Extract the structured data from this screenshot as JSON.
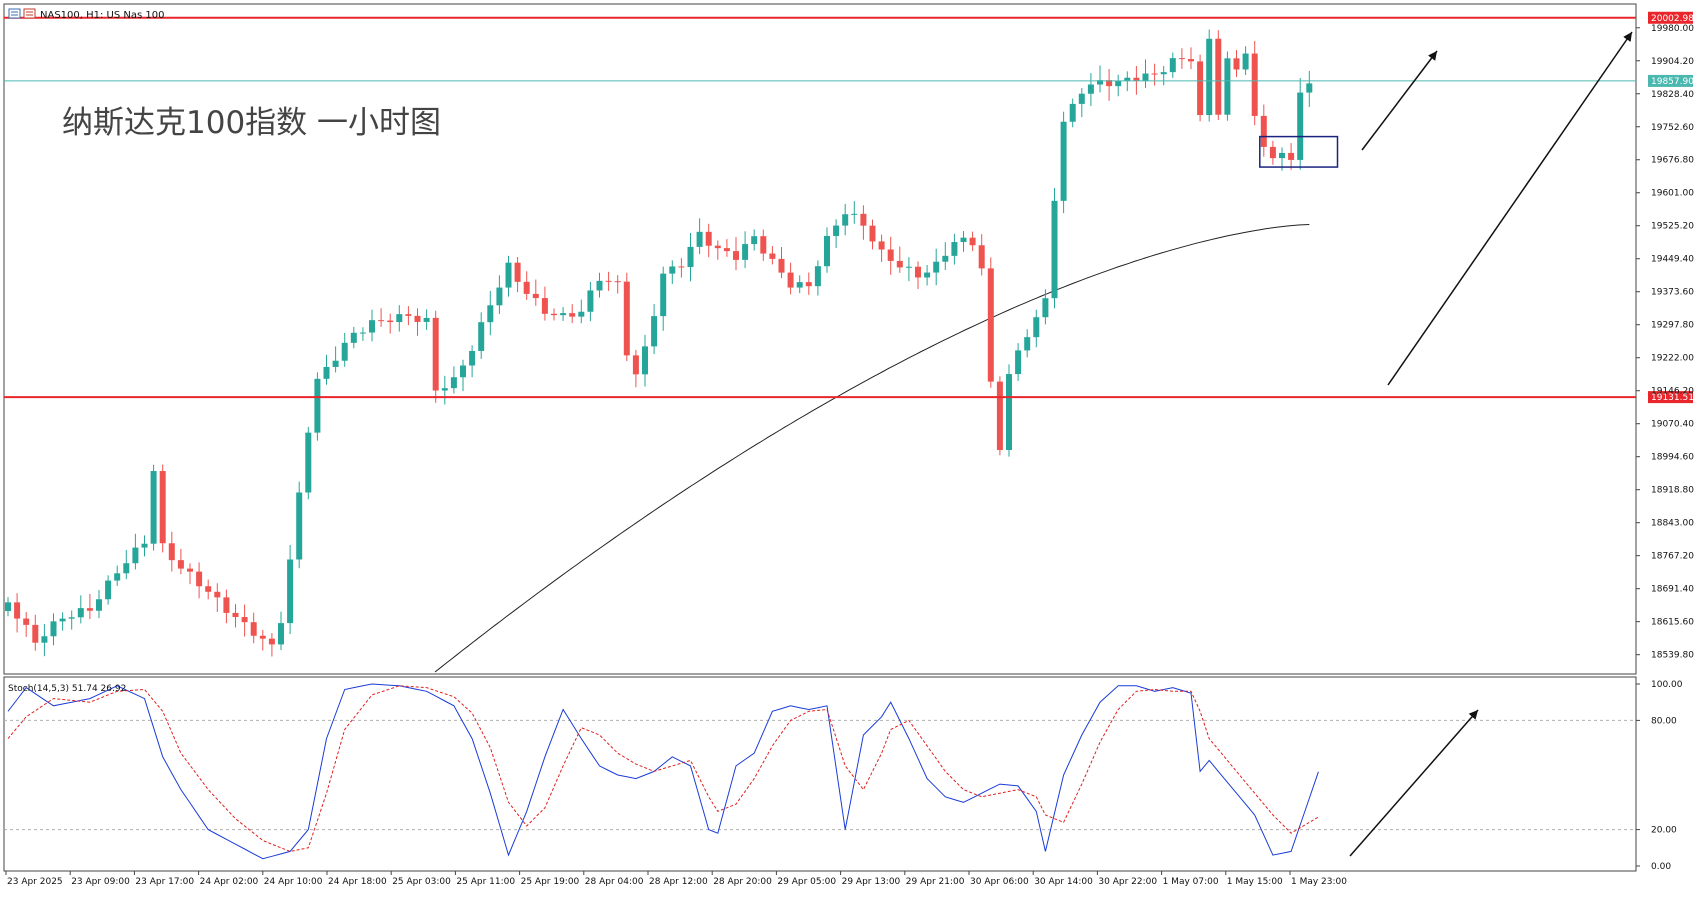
{
  "header": {
    "symbol_label": "NAS100, H1:  US Nas 100",
    "overlay_title": "纳斯达克100指数 一小时图"
  },
  "colors": {
    "bull": "#26a69a",
    "bear": "#ef5350",
    "resistance": "#e8262b",
    "current_price": "#4bb8b0",
    "ma": "#222222",
    "stoch_main": "#1a3cd8",
    "stoch_signal": "#e02020",
    "box": "#1a237e",
    "arrow": "#111111"
  },
  "chart_data": [
    {
      "type": "candlestick",
      "title": "",
      "y_ticks": [
        "19980.00",
        "19904.20",
        "19828.40",
        "19752.60",
        "19676.80",
        "19601.00",
        "19525.20",
        "19449.40",
        "19373.60",
        "19297.80",
        "19222.00",
        "19146.20",
        "19070.40",
        "18994.60",
        "18918.80",
        "18843.00",
        "18767.20",
        "18691.40",
        "18615.60",
        "18539.80"
      ],
      "ylim": [
        18500,
        20030
      ],
      "x_labels": [
        "23 Apr 2025",
        "23 Apr 09:00",
        "23 Apr 17:00",
        "24 Apr 02:00",
        "24 Apr 10:00",
        "24 Apr 18:00",
        "25 Apr 03:00",
        "25 Apr 11:00",
        "25 Apr 19:00",
        "28 Apr 04:00",
        "28 Apr 12:00",
        "28 Apr 20:00",
        "29 Apr 05:00",
        "29 Apr 13:00",
        "29 Apr 21:00",
        "30 Apr 06:00",
        "30 Apr 14:00",
        "30 Apr 22:00",
        "1 May 07:00",
        "1 May 15:00",
        "1 May 23:00"
      ],
      "close_anchors": [
        [
          0,
          18660
        ],
        [
          3,
          18560
        ],
        [
          6,
          18620
        ],
        [
          9,
          18650
        ],
        [
          12,
          18740
        ],
        [
          15,
          18800
        ],
        [
          16,
          18960
        ],
        [
          17,
          18780
        ],
        [
          19,
          18730
        ],
        [
          21,
          18700
        ],
        [
          24,
          18650
        ],
        [
          27,
          18600
        ],
        [
          29,
          18560
        ],
        [
          30,
          18620
        ],
        [
          31,
          18750
        ],
        [
          32,
          18900
        ],
        [
          33,
          19050
        ],
        [
          34,
          19160
        ],
        [
          36,
          19220
        ],
        [
          38,
          19280
        ],
        [
          40,
          19310
        ],
        [
          42,
          19320
        ],
        [
          44,
          19320
        ],
        [
          46,
          19300
        ],
        [
          47,
          19140
        ],
        [
          48,
          19150
        ],
        [
          49,
          19160
        ],
        [
          51,
          19240
        ],
        [
          53,
          19350
        ],
        [
          55,
          19440
        ],
        [
          57,
          19380
        ],
        [
          59,
          19330
        ],
        [
          61,
          19310
        ],
        [
          63,
          19320
        ],
        [
          65,
          19400
        ],
        [
          67,
          19390
        ],
        [
          68,
          19240
        ],
        [
          69,
          19190
        ],
        [
          70,
          19250
        ],
        [
          72,
          19420
        ],
        [
          74,
          19440
        ],
        [
          76,
          19500
        ],
        [
          78,
          19460
        ],
        [
          80,
          19450
        ],
        [
          82,
          19500
        ],
        [
          84,
          19450
        ],
        [
          86,
          19400
        ],
        [
          88,
          19390
        ],
        [
          90,
          19490
        ],
        [
          92,
          19550
        ],
        [
          94,
          19520
        ],
        [
          96,
          19460
        ],
        [
          98,
          19440
        ],
        [
          100,
          19420
        ],
        [
          102,
          19440
        ],
        [
          104,
          19490
        ],
        [
          106,
          19480
        ],
        [
          107,
          19420
        ],
        [
          108,
          19150
        ],
        [
          109,
          19010
        ],
        [
          110,
          19180
        ],
        [
          112,
          19280
        ],
        [
          114,
          19360
        ],
        [
          115,
          19600
        ],
        [
          116,
          19770
        ],
        [
          118,
          19840
        ],
        [
          120,
          19850
        ],
        [
          122,
          19845
        ],
        [
          124,
          19860
        ],
        [
          126,
          19870
        ],
        [
          128,
          19910
        ],
        [
          130,
          19920
        ],
        [
          131,
          19780
        ],
        [
          132,
          19960
        ],
        [
          133,
          19790
        ],
        [
          134,
          19900
        ],
        [
          135,
          19880
        ],
        [
          136,
          19920
        ],
        [
          137,
          19760
        ],
        [
          138,
          19700
        ],
        [
          139,
          19680
        ],
        [
          141,
          19680
        ],
        [
          142,
          19840
        ],
        [
          143,
          19850
        ]
      ],
      "horizontal_levels": [
        {
          "label": "20002.98",
          "value": 20002.98
        },
        {
          "label": "19131.51",
          "value": 19131.51
        }
      ],
      "current_price": {
        "label": "19857.90",
        "value": 19857.9
      },
      "moving_average": {
        "period": 200,
        "start_value": 18500,
        "end_value": 19528
      },
      "box": {
        "from_index": 138,
        "to_index": 145,
        "low": 19660,
        "high": 19730
      }
    },
    {
      "type": "line",
      "title": "",
      "label": "Stoch(14,5,3) 51.74 26.92",
      "y_ticks": [
        "100.00",
        "80.00",
        "20.00",
        "0.00"
      ],
      "ylim": [
        0,
        100
      ],
      "levels": [
        80,
        20
      ],
      "series": [
        {
          "name": "",
          "role": "main",
          "anchors": [
            [
              0,
              85
            ],
            [
              2,
              98
            ],
            [
              5,
              88
            ],
            [
              9,
              92
            ],
            [
              12,
              99
            ],
            [
              15,
              92
            ],
            [
              17,
              60
            ],
            [
              19,
              42
            ],
            [
              22,
              20
            ],
            [
              25,
              12
            ],
            [
              28,
              4
            ],
            [
              31,
              8
            ],
            [
              33,
              20
            ],
            [
              35,
              70
            ],
            [
              37,
              97
            ],
            [
              40,
              100
            ],
            [
              43,
              99
            ],
            [
              46,
              96
            ],
            [
              49,
              88
            ],
            [
              51,
              70
            ],
            [
              53,
              40
            ],
            [
              55,
              6
            ],
            [
              57,
              30
            ],
            [
              59,
              60
            ],
            [
              61,
              86
            ],
            [
              63,
              70
            ],
            [
              65,
              55
            ],
            [
              67,
              50
            ],
            [
              69,
              48
            ],
            [
              71,
              52
            ],
            [
              73,
              60
            ],
            [
              75,
              55
            ],
            [
              77,
              20
            ],
            [
              78,
              18
            ],
            [
              80,
              55
            ],
            [
              82,
              62
            ],
            [
              84,
              85
            ],
            [
              86,
              88
            ],
            [
              88,
              86
            ],
            [
              90,
              88
            ],
            [
              92,
              20
            ],
            [
              94,
              72
            ],
            [
              96,
              82
            ],
            [
              97,
              90
            ],
            [
              99,
              70
            ],
            [
              101,
              48
            ],
            [
              103,
              38
            ],
            [
              105,
              35
            ],
            [
              107,
              40
            ],
            [
              109,
              45
            ],
            [
              111,
              44
            ],
            [
              113,
              30
            ],
            [
              114,
              8
            ],
            [
              116,
              50
            ],
            [
              118,
              72
            ],
            [
              120,
              90
            ],
            [
              122,
              99
            ],
            [
              124,
              99
            ],
            [
              126,
              96
            ],
            [
              128,
              98
            ],
            [
              130,
              95
            ],
            [
              131,
              52
            ],
            [
              132,
              58
            ],
            [
              134,
              46
            ],
            [
              135,
              40
            ],
            [
              137,
              28
            ],
            [
              139,
              6
            ],
            [
              141,
              8
            ],
            [
              144,
              51.74
            ]
          ]
        },
        {
          "name": "",
          "role": "signal",
          "anchors": [
            [
              0,
              70
            ],
            [
              2,
              82
            ],
            [
              5,
              92
            ],
            [
              9,
              90
            ],
            [
              12,
              96
            ],
            [
              15,
              97
            ],
            [
              17,
              85
            ],
            [
              19,
              62
            ],
            [
              22,
              42
            ],
            [
              25,
              26
            ],
            [
              28,
              14
            ],
            [
              31,
              8
            ],
            [
              33,
              10
            ],
            [
              35,
              40
            ],
            [
              37,
              75
            ],
            [
              40,
              94
            ],
            [
              43,
              99
            ],
            [
              46,
              98
            ],
            [
              49,
              93
            ],
            [
              51,
              84
            ],
            [
              53,
              65
            ],
            [
              55,
              35
            ],
            [
              57,
              22
            ],
            [
              59,
              32
            ],
            [
              61,
              55
            ],
            [
              63,
              76
            ],
            [
              65,
              72
            ],
            [
              67,
              62
            ],
            [
              69,
              56
            ],
            [
              71,
              52
            ],
            [
              73,
              55
            ],
            [
              75,
              58
            ],
            [
              77,
              38
            ],
            [
              78,
              30
            ],
            [
              80,
              34
            ],
            [
              82,
              48
            ],
            [
              84,
              66
            ],
            [
              86,
              80
            ],
            [
              88,
              85
            ],
            [
              90,
              86
            ],
            [
              92,
              55
            ],
            [
              94,
              42
            ],
            [
              96,
              62
            ],
            [
              97,
              75
            ],
            [
              99,
              80
            ],
            [
              101,
              66
            ],
            [
              103,
              52
            ],
            [
              105,
              42
            ],
            [
              107,
              38
            ],
            [
              109,
              40
            ],
            [
              111,
              42
            ],
            [
              113,
              38
            ],
            [
              114,
              28
            ],
            [
              116,
              24
            ],
            [
              118,
              45
            ],
            [
              120,
              68
            ],
            [
              122,
              86
            ],
            [
              124,
              96
            ],
            [
              126,
              97
            ],
            [
              128,
              96
            ],
            [
              130,
              96
            ],
            [
              131,
              85
            ],
            [
              132,
              70
            ],
            [
              134,
              58
            ],
            [
              135,
              52
            ],
            [
              137,
              40
            ],
            [
              139,
              28
            ],
            [
              141,
              18
            ],
            [
              144,
              26.92
            ]
          ]
        }
      ]
    }
  ]
}
